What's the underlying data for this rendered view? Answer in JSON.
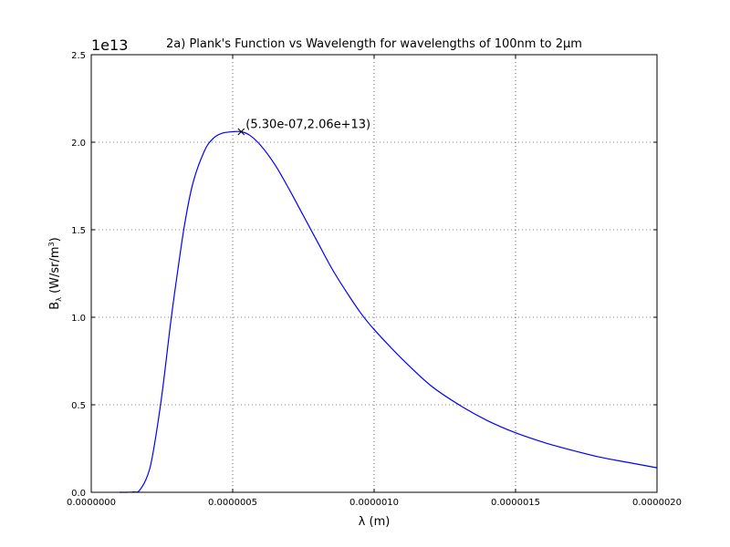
{
  "chart_data": {
    "type": "line",
    "title": "2a) Plank's Function vs Wavelength for wavelengths of 100nm to 2μm",
    "xlabel": "λ (m)",
    "ylabel_main": "B",
    "ylabel_sub": "λ",
    "ylabel_unit": " (W/sr/m",
    "ylabel_sup": "3",
    "ylabel_close": ")",
    "y_offset_label": "1e13",
    "xlim": [
      0,
      2e-06
    ],
    "ylim": [
      0,
      25000000000000.0
    ],
    "x_ticks": [
      0,
      5e-07,
      1e-06,
      1.5e-06,
      2e-06
    ],
    "x_tick_labels": [
      "0.0000000",
      "0.0000005",
      "0.0000010",
      "0.0000015",
      "0.0000020"
    ],
    "y_ticks": [
      0,
      5000000000000.0,
      10000000000000.0,
      15000000000000.0,
      20000000000000.0,
      25000000000000.0
    ],
    "y_tick_labels": [
      "0.0",
      "0.5",
      "1.0",
      "1.5",
      "2.0",
      "2.5"
    ],
    "grid": true,
    "series": [
      {
        "color": "#0000ff",
        "x": [
          1e-07,
          1.3e-07,
          1.5e-07,
          1.7e-07,
          2e-07,
          2.2e-07,
          2.5e-07,
          2.8e-07,
          3e-07,
          3.3e-07,
          3.6e-07,
          4e-07,
          4.3e-07,
          4.6e-07,
          5e-07,
          5.3e-07,
          5.6e-07,
          6e-07,
          6.5e-07,
          7e-07,
          7.5e-07,
          8e-07,
          8.5e-07,
          9e-07,
          9.5e-07,
          1e-06,
          1.1e-06,
          1.2e-06,
          1.3e-06,
          1.4e-06,
          1.5e-06,
          1.6e-06,
          1.7e-06,
          1.8e-06,
          1.9e-06,
          2e-06
        ],
        "y": [
          0.0,
          1000000000.0,
          20000000000.0,
          100000000000.0,
          1000000000000.0,
          2400000000000.0,
          5600000000000.0,
          9600000000000.0,
          12000000000000.0,
          15300000000000.0,
          17700000000000.0,
          19500000000000.0,
          20200000000000.0,
          20500000000000.0,
          20600000000000.0,
          20600000000000.0,
          20400000000000.0,
          19800000000000.0,
          18700000000000.0,
          17300000000000.0,
          15800000000000.0,
          14300000000000.0,
          12800000000000.0,
          11500000000000.0,
          10300000000000.0,
          9300000000000.0,
          7600000000000.0,
          6100000000000.0,
          5000000000000.0,
          4100000000000.0,
          3400000000000.0,
          2850000000000.0,
          2400000000000.0,
          2000000000000.0,
          1700000000000.0,
          1400000000000.0
        ]
      }
    ],
    "annotation": {
      "x": 5.3e-07,
      "y": 20600000000000.0,
      "text": "(5.30e-07,2.06e+13)"
    }
  }
}
